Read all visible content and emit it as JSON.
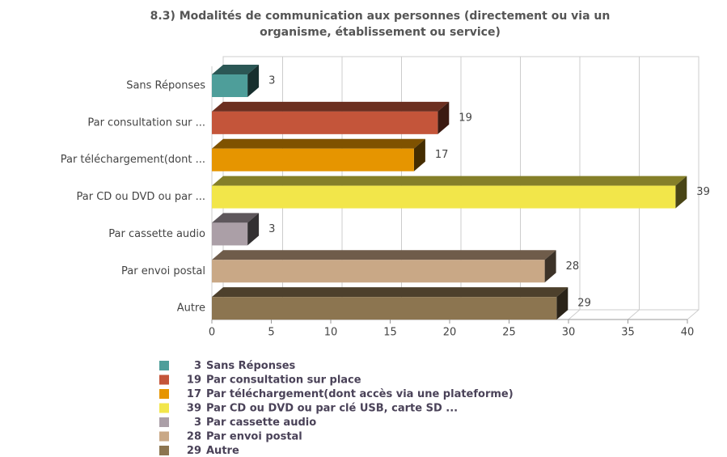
{
  "chart_data": {
    "type": "bar3d_horizontal",
    "title": [
      "8.3) Modalités de communication aux personnes (directement ou via un",
      "organisme,  établissement ou service)"
    ],
    "categories": [
      "Sans Réponses",
      "Par consultation sur ...",
      "Par téléchargement(dont ...",
      "Par CD ou DVD ou par ...",
      "Par cassette audio",
      "Par envoi postal",
      "Autre"
    ],
    "values": [
      3,
      19,
      17,
      39,
      3,
      28,
      29
    ],
    "colors": [
      "#4e9e9a",
      "#c4553a",
      "#e69500",
      "#f2e64a",
      "#ab9fa7",
      "#c9a886",
      "#8c7550"
    ],
    "legend": [
      "Sans Réponses",
      "Par consultation sur place",
      "Par téléchargement(dont accès via une plateforme)",
      "Par CD ou DVD ou par clé USB, carte SD ...",
      "Par cassette audio",
      "Par envoi postal",
      "Autre"
    ],
    "xlim": [
      0,
      40
    ],
    "xticks": [
      0,
      5,
      10,
      15,
      20,
      25,
      30,
      35,
      40
    ],
    "grid": true
  }
}
